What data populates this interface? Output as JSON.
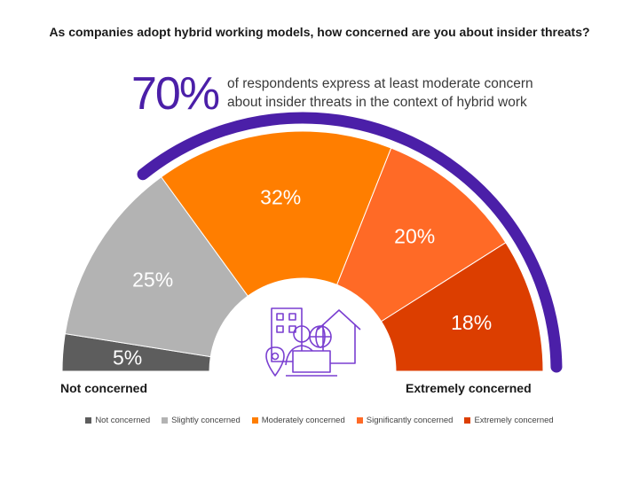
{
  "title": "As companies adopt hybrid working models, how concerned are you about insider threats?",
  "highlight": {
    "value": "70%",
    "line1": "of respondents express  at least moderate concern",
    "line2": "about insider threats in the context of hybrid work"
  },
  "end_labels": {
    "left": "Not concerned",
    "right": "Extremely concerned"
  },
  "chart_data": {
    "type": "pie",
    "variant": "semicircle",
    "title": "As companies adopt hybrid working models, how concerned are you about insider threats?",
    "categories": [
      "Not concerned",
      "Slightly concerned",
      "Moderately concerned",
      "Significantly concerned",
      "Extremely concerned"
    ],
    "values": [
      5,
      25,
      32,
      20,
      18
    ],
    "labels": [
      "5%",
      "25%",
      "32%",
      "20%",
      "18%"
    ],
    "colors": [
      "#5d5d5d",
      "#b3b3b3",
      "#ff7e00",
      "#ff6a26",
      "#dc3e00"
    ],
    "accent": "#4b1fa8",
    "legend_position": "bottom"
  }
}
